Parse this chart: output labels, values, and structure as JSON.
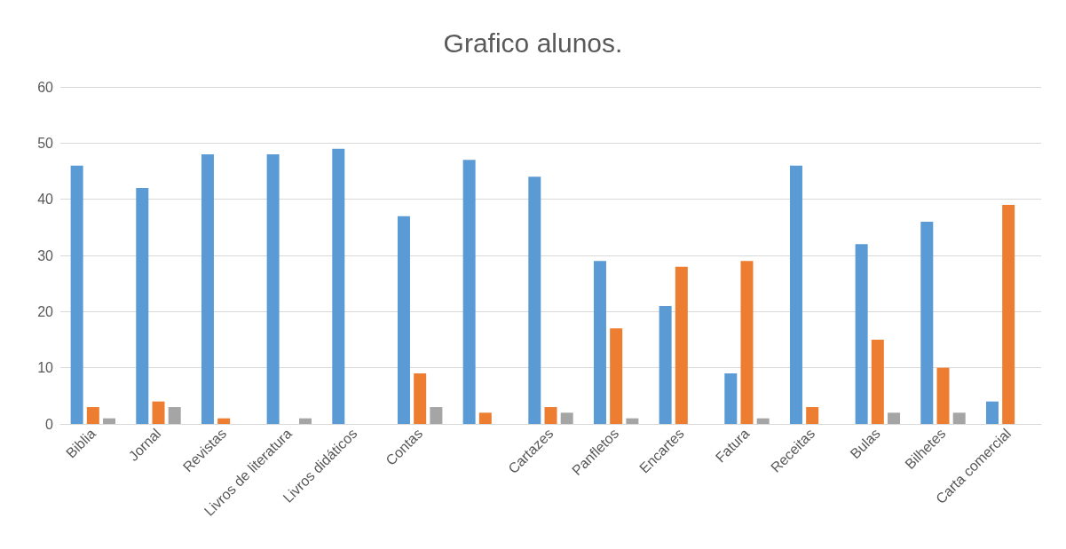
{
  "chart_data": {
    "type": "bar",
    "title": "Grafico alunos.",
    "categories": [
      "Biblia",
      "Jornal",
      "Revistas",
      "Livros de literatura",
      "Livros didáticos",
      "Contas",
      null,
      "Cartazes",
      "Panfletos",
      "Encartes",
      "Fatura",
      "Receitas",
      "Bulas",
      "Bilhetes",
      "Carta comercial"
    ],
    "series": [
      {
        "color": "#5b9bd5",
        "values": [
          46,
          42,
          48,
          48,
          49,
          37,
          47,
          44,
          29,
          21,
          9,
          46,
          32,
          36,
          4
        ]
      },
      {
        "color": "#ed7d31",
        "values": [
          3,
          4,
          1,
          0,
          0,
          9,
          2,
          3,
          17,
          28,
          29,
          3,
          15,
          10,
          39
        ]
      },
      {
        "color": "#a5a5a5",
        "values": [
          1,
          3,
          0,
          1,
          0,
          3,
          0,
          2,
          1,
          0,
          1,
          0,
          2,
          2,
          null
        ]
      }
    ],
    "ylim": [
      0,
      60
    ],
    "yticks": [
      0,
      10,
      20,
      30,
      40,
      50,
      60
    ],
    "grid": "y"
  }
}
